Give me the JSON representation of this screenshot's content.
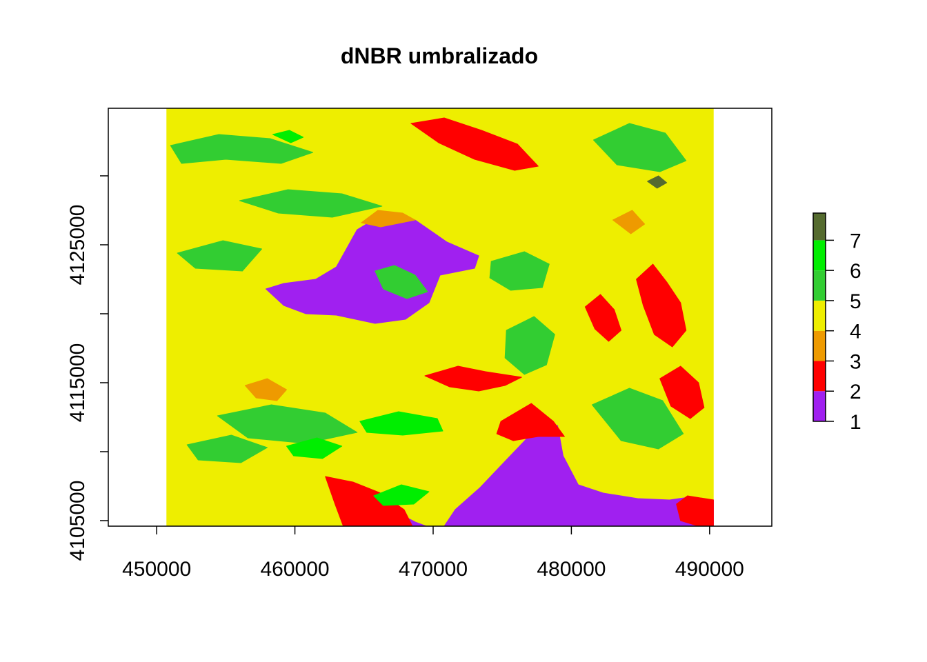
{
  "chart_data": {
    "type": "heatmap",
    "title": "dNBR umbralizado",
    "xlabel": "",
    "ylabel": "",
    "xlim": [
      446500,
      494500
    ],
    "ylim": [
      4104600,
      4134900
    ],
    "raster_extent": {
      "x": [
        450700,
        490300
      ],
      "y": [
        4104600,
        4134900
      ]
    },
    "x_ticks": [
      450000,
      460000,
      470000,
      480000,
      490000
    ],
    "x_tick_labels": [
      "450000",
      "460000",
      "470000",
      "480000",
      "490000"
    ],
    "y_ticks": [
      4105000,
      4110000,
      4115000,
      4120000,
      4125000,
      4130000
    ],
    "y_tick_labels": [
      "4105000",
      "",
      "4115000",
      "",
      "4125000",
      ""
    ],
    "legend": {
      "placement": "right",
      "breaks": [
        1,
        2,
        3,
        4,
        5,
        6,
        7
      ],
      "labels": [
        "1",
        "2",
        "3",
        "4",
        "5",
        "6",
        "7"
      ],
      "classes": [
        {
          "from": 1,
          "to": 2,
          "color": "#a020f0"
        },
        {
          "from": 2,
          "to": 3,
          "color": "#ff0000"
        },
        {
          "from": 3,
          "to": 4,
          "color": "#ee9a00"
        },
        {
          "from": 4,
          "to": 5,
          "color": "#eeee00"
        },
        {
          "from": 5,
          "to": 6,
          "color": "#32cd32"
        },
        {
          "from": 6,
          "to": 7,
          "color": "#00ee00"
        },
        {
          "from": 7,
          "to": 7.9,
          "color": "#556b2f"
        }
      ]
    },
    "dominant_class": 4,
    "regions": [
      {
        "class": 1,
        "polygon": [
          [
            457900,
            4121800
          ],
          [
            459200,
            4122200
          ],
          [
            461500,
            4122500
          ],
          [
            463000,
            4123400
          ],
          [
            464500,
            4126100
          ],
          [
            466000,
            4127000
          ],
          [
            468700,
            4126800
          ],
          [
            471000,
            4125200
          ],
          [
            473300,
            4124200
          ],
          [
            473000,
            4123300
          ],
          [
            470500,
            4122800
          ],
          [
            469700,
            4120800
          ],
          [
            468000,
            4119600
          ],
          [
            465800,
            4119300
          ],
          [
            463000,
            4119900
          ],
          [
            460800,
            4120000
          ],
          [
            459200,
            4120600
          ]
        ]
      },
      {
        "class": 1,
        "polygon": [
          [
            470800,
            4104600
          ],
          [
            471600,
            4105800
          ],
          [
            473400,
            4107400
          ],
          [
            475200,
            4109300
          ],
          [
            477100,
            4111300
          ],
          [
            479000,
            4111900
          ],
          [
            479400,
            4109700
          ],
          [
            480500,
            4107600
          ],
          [
            482300,
            4107000
          ],
          [
            484800,
            4106600
          ],
          [
            487100,
            4106500
          ],
          [
            488500,
            4106700
          ],
          [
            490300,
            4106500
          ],
          [
            490300,
            4104600
          ]
        ]
      },
      {
        "class": 1,
        "polygon": [
          [
            463500,
            4104600
          ],
          [
            464200,
            4106000
          ],
          [
            465800,
            4106800
          ],
          [
            467000,
            4105800
          ],
          [
            468700,
            4104900
          ],
          [
            469500,
            4104600
          ]
        ]
      },
      {
        "class": 2,
        "polygon": [
          [
            474900,
            4112200
          ],
          [
            477100,
            4113500
          ],
          [
            478700,
            4112200
          ],
          [
            479500,
            4111100
          ],
          [
            477600,
            4111100
          ],
          [
            475800,
            4110800
          ],
          [
            474600,
            4111300
          ]
        ]
      },
      {
        "class": 2,
        "polygon": [
          [
            469400,
            4115500
          ],
          [
            471800,
            4116200
          ],
          [
            473800,
            4115800
          ],
          [
            476400,
            4115400
          ],
          [
            475200,
            4114800
          ],
          [
            473300,
            4114400
          ],
          [
            471200,
            4114700
          ]
        ]
      },
      {
        "class": 2,
        "polygon": [
          [
            462200,
            4108200
          ],
          [
            464200,
            4107800
          ],
          [
            466200,
            4107000
          ],
          [
            467900,
            4105800
          ],
          [
            468500,
            4104600
          ],
          [
            463500,
            4104600
          ],
          [
            462900,
            4106200
          ]
        ]
      },
      {
        "class": 2,
        "polygon": [
          [
            468400,
            4133800
          ],
          [
            470800,
            4134200
          ],
          [
            473500,
            4133300
          ],
          [
            476100,
            4132300
          ],
          [
            477600,
            4130700
          ],
          [
            475900,
            4130400
          ],
          [
            473000,
            4131200
          ],
          [
            470400,
            4132400
          ]
        ]
      },
      {
        "class": 2,
        "polygon": [
          [
            484700,
            4122500
          ],
          [
            485900,
            4123600
          ],
          [
            486900,
            4122300
          ],
          [
            487900,
            4120800
          ],
          [
            488300,
            4118800
          ],
          [
            487300,
            4117600
          ],
          [
            486000,
            4118500
          ],
          [
            485200,
            4120600
          ]
        ]
      },
      {
        "class": 2,
        "polygon": [
          [
            481000,
            4120500
          ],
          [
            482100,
            4121400
          ],
          [
            483100,
            4120300
          ],
          [
            483600,
            4118800
          ],
          [
            482700,
            4118000
          ],
          [
            481700,
            4118900
          ]
        ]
      },
      {
        "class": 2,
        "polygon": [
          [
            486400,
            4115300
          ],
          [
            487900,
            4116200
          ],
          [
            489200,
            4115000
          ],
          [
            489600,
            4113200
          ],
          [
            488600,
            4112400
          ],
          [
            487200,
            4113300
          ]
        ]
      },
      {
        "class": 2,
        "polygon": [
          [
            490300,
            4106500
          ],
          [
            488400,
            4106800
          ],
          [
            487600,
            4106200
          ],
          [
            487900,
            4105000
          ],
          [
            489200,
            4104600
          ],
          [
            490300,
            4104600
          ]
        ]
      },
      {
        "class": 3,
        "polygon": [
          [
            464800,
            4126600
          ],
          [
            466000,
            4127500
          ],
          [
            467800,
            4127300
          ],
          [
            468700,
            4126800
          ],
          [
            466200,
            4126300
          ]
        ]
      },
      {
        "class": 3,
        "polygon": [
          [
            456400,
            4114800
          ],
          [
            458000,
            4115300
          ],
          [
            459400,
            4114500
          ],
          [
            458700,
            4113700
          ],
          [
            457200,
            4113900
          ]
        ]
      },
      {
        "class": 3,
        "polygon": [
          [
            483000,
            4126800
          ],
          [
            484400,
            4127500
          ],
          [
            485300,
            4126500
          ],
          [
            484300,
            4125800
          ]
        ]
      },
      {
        "class": 5,
        "polygon": [
          [
            451000,
            4132200
          ],
          [
            454500,
            4133000
          ],
          [
            458200,
            4132700
          ],
          [
            461300,
            4131700
          ],
          [
            459000,
            4130900
          ],
          [
            455000,
            4131200
          ],
          [
            451800,
            4130900
          ]
        ]
      },
      {
        "class": 5,
        "polygon": [
          [
            456000,
            4128200
          ],
          [
            459500,
            4129000
          ],
          [
            463400,
            4128700
          ],
          [
            466300,
            4127800
          ],
          [
            462700,
            4127000
          ],
          [
            458800,
            4127300
          ]
        ]
      },
      {
        "class": 5,
        "polygon": [
          [
            451500,
            4124400
          ],
          [
            454800,
            4125300
          ],
          [
            457600,
            4124700
          ],
          [
            456200,
            4123100
          ],
          [
            452800,
            4123300
          ]
        ]
      },
      {
        "class": 5,
        "polygon": [
          [
            465800,
            4123100
          ],
          [
            467200,
            4123500
          ],
          [
            468700,
            4122800
          ],
          [
            469600,
            4121600
          ],
          [
            468100,
            4121100
          ],
          [
            466400,
            4121800
          ]
        ]
      },
      {
        "class": 5,
        "polygon": [
          [
            474200,
            4123800
          ],
          [
            476600,
            4124500
          ],
          [
            478400,
            4123600
          ],
          [
            477900,
            4121900
          ],
          [
            475600,
            4121700
          ],
          [
            474100,
            4122600
          ]
        ]
      },
      {
        "class": 5,
        "polygon": [
          [
            475300,
            4118800
          ],
          [
            477300,
            4119800
          ],
          [
            478800,
            4118500
          ],
          [
            478200,
            4116300
          ],
          [
            476600,
            4115600
          ],
          [
            475200,
            4116800
          ]
        ]
      },
      {
        "class": 5,
        "polygon": [
          [
            481600,
            4132600
          ],
          [
            484200,
            4133800
          ],
          [
            486800,
            4133100
          ],
          [
            488300,
            4131100
          ],
          [
            486400,
            4130300
          ],
          [
            483300,
            4130800
          ]
        ]
      },
      {
        "class": 5,
        "polygon": [
          [
            481500,
            4113400
          ],
          [
            484200,
            4114600
          ],
          [
            486600,
            4113700
          ],
          [
            488100,
            4111300
          ],
          [
            486300,
            4110200
          ],
          [
            483600,
            4110800
          ]
        ]
      },
      {
        "class": 5,
        "polygon": [
          [
            454400,
            4112600
          ],
          [
            458300,
            4113400
          ],
          [
            462200,
            4112800
          ],
          [
            464500,
            4111400
          ],
          [
            460800,
            4110600
          ],
          [
            456600,
            4111000
          ]
        ]
      },
      {
        "class": 5,
        "polygon": [
          [
            452200,
            4110500
          ],
          [
            455400,
            4111200
          ],
          [
            458000,
            4110300
          ],
          [
            456100,
            4109200
          ],
          [
            453000,
            4109400
          ]
        ]
      },
      {
        "class": 6,
        "polygon": [
          [
            464700,
            4112200
          ],
          [
            467500,
            4112900
          ],
          [
            470300,
            4112400
          ],
          [
            470700,
            4111500
          ],
          [
            467800,
            4111200
          ],
          [
            465200,
            4111400
          ]
        ]
      },
      {
        "class": 6,
        "polygon": [
          [
            459400,
            4110400
          ],
          [
            461600,
            4111000
          ],
          [
            463400,
            4110400
          ],
          [
            462000,
            4109500
          ],
          [
            459900,
            4109700
          ]
        ]
      },
      {
        "class": 6,
        "polygon": [
          [
            465700,
            4106800
          ],
          [
            467700,
            4107600
          ],
          [
            469700,
            4107100
          ],
          [
            468600,
            4106200
          ],
          [
            466400,
            4106100
          ]
        ]
      },
      {
        "class": 6,
        "polygon": [
          [
            458400,
            4133000
          ],
          [
            459600,
            4133300
          ],
          [
            460600,
            4132800
          ],
          [
            459700,
            4132400
          ]
        ]
      },
      {
        "class": 7,
        "polygon": [
          [
            485500,
            4129600
          ],
          [
            486300,
            4130000
          ],
          [
            486900,
            4129500
          ],
          [
            486200,
            4129100
          ]
        ]
      }
    ]
  }
}
